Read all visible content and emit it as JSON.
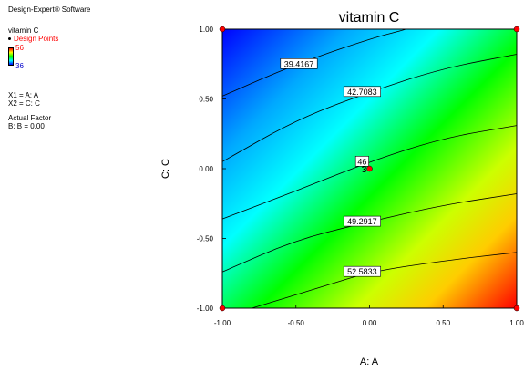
{
  "sidebar": {
    "software": "Design-Expert® Software",
    "response": "vitamin C",
    "design_points_label": "Design Points",
    "legend_max": "56",
    "legend_min": "36",
    "x1": "X1 = A: A",
    "x2": "X2 = C: C",
    "actual_factor_heading": "Actual Factor",
    "actual_factor": "B: B = 0.00"
  },
  "chart_data": {
    "type": "contour",
    "title": "vitamin C",
    "xlabel": "A: A",
    "ylabel": "C: C",
    "xlim": [
      -1,
      1
    ],
    "ylim": [
      -1,
      1
    ],
    "x_ticks": [
      "-1.00",
      "-0.50",
      "0.00",
      "0.50",
      "1.00"
    ],
    "y_ticks": [
      "1.00",
      "0.50",
      "0.00",
      "-0.50",
      "-1.00"
    ],
    "colormap": [
      "#0000ff",
      "#00ffff",
      "#00ff00",
      "#ffff00",
      "#ff0000"
    ],
    "contour_levels": [
      {
        "value": "39.4167",
        "points": [
          [
            -1.0,
            0.52
          ],
          [
            -0.5,
            0.75
          ],
          [
            0.0,
            0.93
          ],
          [
            0.25,
            1.0
          ]
        ]
      },
      {
        "value": "42.7083",
        "points": [
          [
            -1.0,
            0.05
          ],
          [
            -0.5,
            0.35
          ],
          [
            0.0,
            0.55
          ],
          [
            0.5,
            0.72
          ],
          [
            1.0,
            0.82
          ]
        ]
      },
      {
        "value": "46",
        "points": [
          [
            -1.0,
            -0.36
          ],
          [
            -0.5,
            -0.16
          ],
          [
            0.0,
            0.05
          ],
          [
            0.5,
            0.22
          ],
          [
            1.0,
            0.31
          ]
        ]
      },
      {
        "value": "49.2917",
        "points": [
          [
            -1.0,
            -0.74
          ],
          [
            -0.5,
            -0.51
          ],
          [
            0.0,
            -0.38
          ],
          [
            0.5,
            -0.26
          ],
          [
            1.0,
            -0.18
          ]
        ]
      },
      {
        "value": "52.5833",
        "points": [
          [
            -0.8,
            -1.0
          ],
          [
            -0.3,
            -0.84
          ],
          [
            0.0,
            -0.74
          ],
          [
            0.5,
            -0.66
          ],
          [
            1.0,
            -0.6
          ]
        ]
      }
    ],
    "design_points": [
      {
        "x": -1,
        "y": 1
      },
      {
        "x": 1,
        "y": 1
      },
      {
        "x": -1,
        "y": -1
      },
      {
        "x": 1,
        "y": -1
      },
      {
        "x": 0,
        "y": 0,
        "count": "3"
      }
    ],
    "grid": false
  }
}
